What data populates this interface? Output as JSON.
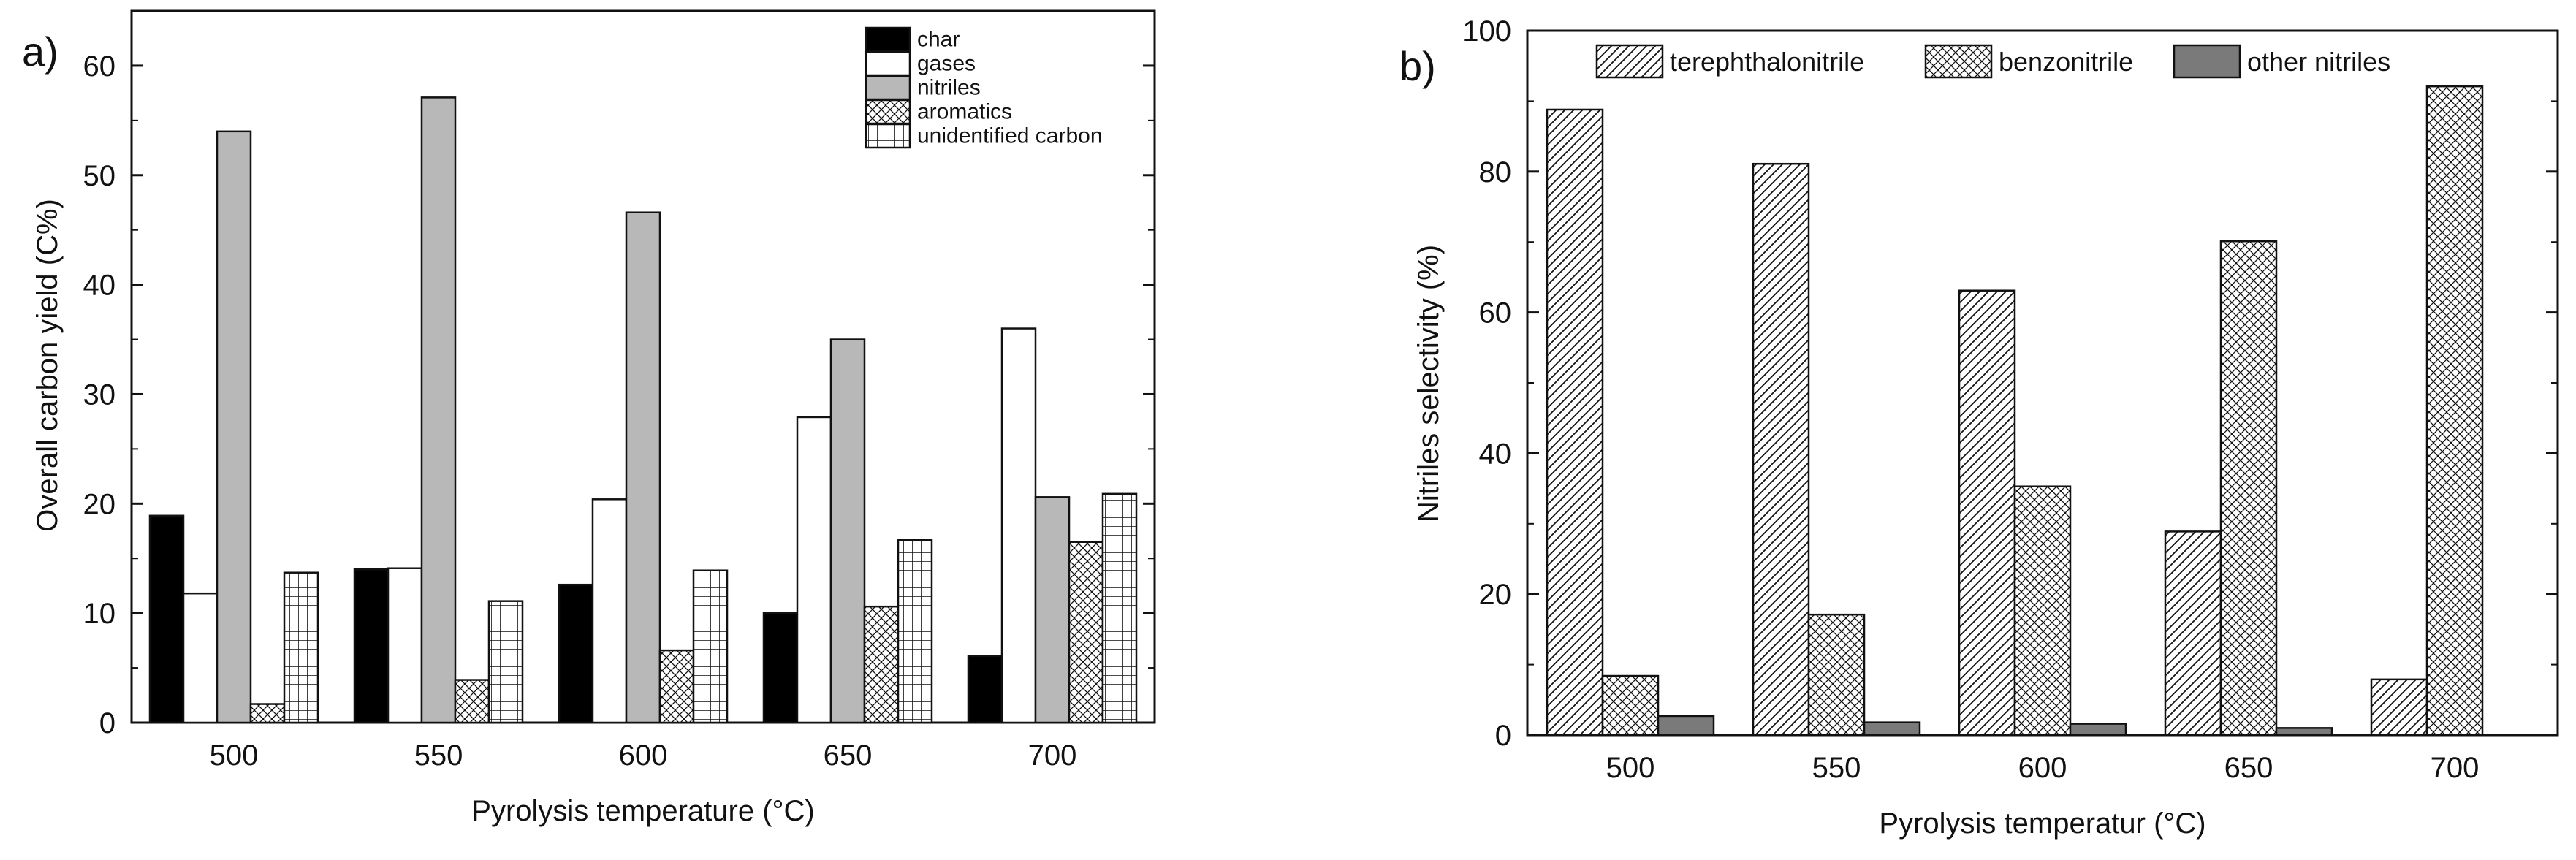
{
  "chart_data": [
    {
      "panel_label": "a)",
      "type": "bar",
      "title": "",
      "xlabel": "Pyrolysis temperature (°C)",
      "ylabel": "Overall carbon yield (C%)",
      "ylim": [
        0,
        65
      ],
      "yticks": [
        "0",
        "10",
        "20",
        "30",
        "40",
        "50",
        "60"
      ],
      "categories": [
        "500",
        "550",
        "600",
        "650",
        "700"
      ],
      "legend_position": "top-right",
      "series": [
        {
          "name": "char",
          "fill": "solid-black",
          "values": [
            18.9,
            14.0,
            12.6,
            10.0,
            6.1
          ]
        },
        {
          "name": "gases",
          "fill": "white",
          "values": [
            11.8,
            14.1,
            20.4,
            27.9,
            36.0
          ]
        },
        {
          "name": "nitriles",
          "fill": "solid-gray",
          "values": [
            54.0,
            57.1,
            46.6,
            35.0,
            20.6
          ]
        },
        {
          "name": "aromatics",
          "fill": "crosshatch",
          "values": [
            1.7,
            3.9,
            6.6,
            10.6,
            16.5
          ]
        },
        {
          "name": "unidentified carbon",
          "fill": "grid",
          "values": [
            13.7,
            11.1,
            13.9,
            16.7,
            20.9
          ]
        }
      ]
    },
    {
      "panel_label": "b)",
      "type": "bar",
      "title": "",
      "xlabel": "Pyrolysis temperatur (°C)",
      "ylabel": "Nitriles selectivity (%)",
      "ylim": [
        0,
        100
      ],
      "yticks": [
        "0",
        "20",
        "40",
        "60",
        "80",
        "100"
      ],
      "categories": [
        "500",
        "550",
        "600",
        "650",
        "700"
      ],
      "legend_position": "top",
      "series": [
        {
          "name": "terephthalonitrile",
          "fill": "diagonal",
          "values": [
            88.8,
            81.1,
            63.1,
            28.9,
            7.9
          ]
        },
        {
          "name": "benzonitrile",
          "fill": "crosshatch",
          "values": [
            8.4,
            17.1,
            35.3,
            70.1,
            92.1
          ]
        },
        {
          "name": "other nitriles",
          "fill": "solid-darkgray",
          "values": [
            2.7,
            1.8,
            1.6,
            1.0,
            0
          ]
        }
      ]
    }
  ]
}
